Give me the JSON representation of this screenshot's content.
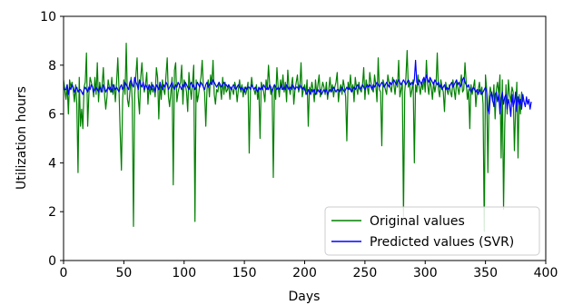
{
  "chart_data": {
    "type": "line",
    "title": "",
    "xlabel": "Days",
    "ylabel": "Utilization hours",
    "xlim": [
      0,
      400
    ],
    "ylim": [
      0,
      10
    ],
    "xticks": [
      "0",
      "50",
      "100",
      "150",
      "200",
      "250",
      "300",
      "350",
      "400"
    ],
    "yticks": [
      "0",
      "2",
      "4",
      "6",
      "8",
      "10"
    ],
    "grid": false,
    "legend_position": "lower-right",
    "series": [
      {
        "name": "Original values",
        "color": "#008000",
        "x_start": 0,
        "x_step": 1,
        "values": [
          7.4,
          7.0,
          6.6,
          7.2,
          6.0,
          7.4,
          7.1,
          7.3,
          7.0,
          6.5,
          7.2,
          6.4,
          3.6,
          7.5,
          5.5,
          6.2,
          5.4,
          7.1,
          7.3,
          8.5,
          5.5,
          6.8,
          7.5,
          7.3,
          7.1,
          6.7,
          7.5,
          6.8,
          8.1,
          6.5,
          7.3,
          6.9,
          7.2,
          7.9,
          6.8,
          6.2,
          6.7,
          7.4,
          7.1,
          6.9,
          7.5,
          6.8,
          7.2,
          6.5,
          7.3,
          8.3,
          7.0,
          5.2,
          3.7,
          6.6,
          7.4,
          6.8,
          8.9,
          6.6,
          6.3,
          6.9,
          7.5,
          6.5,
          1.4,
          6.8,
          7.6,
          8.3,
          6.7,
          6.0,
          7.5,
          8.1,
          7.3,
          6.9,
          7.2,
          7.7,
          6.4,
          7.2,
          6.8,
          7.3,
          6.9,
          7.1,
          6.7,
          7.9,
          7.5,
          5.8,
          7.3,
          6.6,
          7.4,
          7.0,
          6.8,
          7.6,
          8.3,
          6.7,
          6.3,
          6.9,
          7.5,
          3.1,
          7.8,
          8.1,
          6.5,
          6.9,
          7.1,
          7.3,
          8.0,
          6.4,
          7.4,
          7.2,
          6.9,
          6.1,
          7.7,
          7.1,
          6.6,
          7.3,
          8.0,
          1.6,
          7.4,
          6.5,
          6.8,
          7.2,
          7.5,
          8.2,
          7.1,
          6.9,
          5.5,
          7.0,
          7.4,
          6.7,
          7.6,
          7.2,
          8.2,
          6.8,
          6.4,
          7.0,
          6.9,
          7.3,
          7.1,
          6.6,
          7.5,
          6.8,
          7.3,
          6.9,
          7.0,
          7.2,
          6.6,
          7.1,
          7.0,
          6.8,
          7.3,
          7.1,
          6.5,
          7.0,
          7.4,
          6.9,
          7.2,
          6.7,
          7.1,
          6.8,
          7.0,
          7.3,
          4.4,
          6.9,
          7.5,
          7.1,
          7.0,
          6.8,
          7.2,
          6.6,
          7.0,
          5.0,
          7.3,
          7.1,
          6.9,
          6.5,
          7.4,
          7.0,
          8.0,
          7.2,
          6.8,
          7.0,
          3.4,
          7.2,
          6.6,
          7.9,
          7.1,
          6.7,
          7.4,
          7.0,
          7.6,
          6.9,
          7.3,
          6.5,
          7.8,
          7.1,
          6.8,
          7.2,
          7.5,
          6.4,
          7.0,
          7.3,
          7.6,
          6.9,
          7.1,
          8.1,
          6.7,
          7.0,
          7.2,
          6.8,
          7.4,
          5.5,
          7.1,
          6.9,
          7.3,
          7.0,
          6.5,
          7.4,
          6.8,
          7.2,
          7.6,
          6.7,
          7.0,
          7.3,
          7.1,
          6.8,
          7.3,
          6.6,
          7.0,
          7.5,
          6.9,
          7.2,
          6.7,
          7.1,
          7.3,
          7.7,
          6.5,
          7.0,
          7.2,
          6.8,
          7.4,
          7.1,
          6.7,
          4.9,
          7.3,
          7.0,
          7.6,
          6.9,
          7.2,
          6.5,
          7.5,
          7.1,
          6.8,
          7.3,
          7.0,
          6.9,
          7.2,
          7.9,
          6.6,
          7.4,
          7.1,
          6.8,
          7.7,
          7.3,
          7.0,
          6.9,
          7.6,
          7.2,
          6.5,
          8.3,
          7.0,
          6.9,
          4.7,
          7.4,
          7.2,
          7.0,
          6.8,
          7.6,
          7.3,
          7.1,
          6.9,
          7.5,
          7.2,
          6.8,
          7.4,
          7.1,
          8.2,
          6.7,
          7.0,
          7.3,
          1.8,
          6.9,
          7.5,
          8.6,
          7.1,
          7.3,
          6.7,
          7.0,
          7.4,
          4.0,
          7.2,
          6.9,
          7.6,
          7.1,
          6.8,
          7.3,
          7.0,
          7.5,
          6.9,
          8.2,
          7.2,
          6.8,
          7.4,
          7.1,
          6.6,
          7.3,
          6.9,
          7.2,
          8.5,
          7.0,
          6.7,
          7.4,
          7.1,
          6.9,
          6.1,
          7.3,
          7.0,
          6.8,
          7.2,
          6.9,
          6.7,
          7.4,
          7.0,
          6.6,
          7.3,
          7.1,
          6.8,
          7.2,
          7.6,
          6.9,
          7.0,
          8.1,
          7.3,
          6.6,
          7.0,
          5.4,
          7.2,
          6.8,
          7.1,
          7.4,
          6.3,
          6.9,
          7.0,
          7.3,
          6.8,
          7.1,
          6.4,
          1.2,
          7.6,
          7.0,
          3.6,
          6.7,
          7.1,
          6.8,
          6.5,
          7.2,
          5.8,
          7.0,
          7.3,
          6.8,
          7.6,
          4.2,
          7.4,
          2.1,
          5.6,
          7.2,
          6.0,
          7.4,
          6.8,
          6.5,
          7.1,
          6.9,
          4.5,
          6.2,
          7.3,
          4.2,
          6.8,
          6.0,
          6.9,
          6.5
        ]
      },
      {
        "name": "Predicted values (SVR)",
        "color": "#0000ff",
        "x_start": 0,
        "x_step": 1,
        "values": [
          7.1,
          7.0,
          7.0,
          7.2,
          6.8,
          7.1,
          7.0,
          7.2,
          7.1,
          6.9,
          7.0,
          7.1,
          6.9,
          7.0,
          7.0,
          6.9,
          6.8,
          7.0,
          7.1,
          7.0,
          6.9,
          7.1,
          7.0,
          7.2,
          7.1,
          6.9,
          7.0,
          7.1,
          7.0,
          6.9,
          7.1,
          7.0,
          6.9,
          7.2,
          7.1,
          6.9,
          7.0,
          7.1,
          7.0,
          7.1,
          6.9,
          7.2,
          7.1,
          7.0,
          7.1,
          7.0,
          6.9,
          7.1,
          7.2,
          7.0,
          7.1,
          7.3,
          7.2,
          7.1,
          7.0,
          7.3,
          7.4,
          7.2,
          7.1,
          7.5,
          7.3,
          7.2,
          7.0,
          7.4,
          7.2,
          7.1,
          7.3,
          7.0,
          7.2,
          7.1,
          7.0,
          7.2,
          7.1,
          7.0,
          7.2,
          7.1,
          6.9,
          7.2,
          7.1,
          7.0,
          7.3,
          7.1,
          7.0,
          7.2,
          7.1,
          7.3,
          7.2,
          7.0,
          7.1,
          7.2,
          7.3,
          7.1,
          7.0,
          7.2,
          7.1,
          7.3,
          7.2,
          7.1,
          7.0,
          7.2,
          7.1,
          7.3,
          7.2,
          7.1,
          7.0,
          7.2,
          7.3,
          7.1,
          7.2,
          7.0,
          7.1,
          7.3,
          7.2,
          7.1,
          7.3,
          7.2,
          7.1,
          7.0,
          7.2,
          7.3,
          7.1,
          7.2,
          7.3,
          7.2,
          7.4,
          7.3,
          7.2,
          7.1,
          7.2,
          7.3,
          7.2,
          7.1,
          7.2,
          7.3,
          7.2,
          7.2,
          7.1,
          7.2,
          7.1,
          7.0,
          7.1,
          7.2,
          7.1,
          7.0,
          7.1,
          7.2,
          7.1,
          7.0,
          7.1,
          7.0,
          6.9,
          7.1,
          7.0,
          7.1,
          7.1,
          7.0,
          7.2,
          7.1,
          7.0,
          7.1,
          7.0,
          6.9,
          7.1,
          7.0,
          7.1,
          7.0,
          7.2,
          7.1,
          7.0,
          7.1,
          7.0,
          7.2,
          7.1,
          6.9,
          7.1,
          7.2,
          7.1,
          7.0,
          7.1,
          7.0,
          7.1,
          7.2,
          7.0,
          7.1,
          7.0,
          7.2,
          7.1,
          7.0,
          7.1,
          7.0,
          7.2,
          7.1,
          7.0,
          7.1,
          7.1,
          7.0,
          7.2,
          7.1,
          7.0,
          7.1,
          7.0,
          6.9,
          6.8,
          7.0,
          6.9,
          6.8,
          7.0,
          6.9,
          7.0,
          6.8,
          6.9,
          7.0,
          6.9,
          7.0,
          6.8,
          6.9,
          7.0,
          6.9,
          7.0,
          6.8,
          6.9,
          7.0,
          6.9,
          7.0,
          7.1,
          7.0,
          6.9,
          7.0,
          7.0,
          6.9,
          7.0,
          7.1,
          7.0,
          6.9,
          7.0,
          7.1,
          7.0,
          7.1,
          7.0,
          6.9,
          7.0,
          7.1,
          7.0,
          7.1,
          7.2,
          7.1,
          7.0,
          7.1,
          7.2,
          7.1,
          7.0,
          7.1,
          7.2,
          7.1,
          7.2,
          7.1,
          7.0,
          7.2,
          7.1,
          7.2,
          7.3,
          7.2,
          7.1,
          7.2,
          7.3,
          7.2,
          7.1,
          7.2,
          7.3,
          7.2,
          7.1,
          7.3,
          7.2,
          7.3,
          7.4,
          7.3,
          7.2,
          7.3,
          7.4,
          7.3,
          7.2,
          7.3,
          7.4,
          7.3,
          7.2,
          7.3,
          7.4,
          7.3,
          7.2,
          7.3,
          7.2,
          7.4,
          8.2,
          7.3,
          7.2,
          7.4,
          7.3,
          7.2,
          7.4,
          7.5,
          7.3,
          7.6,
          7.4,
          7.3,
          7.5,
          7.4,
          7.3,
          7.2,
          7.4,
          7.3,
          7.2,
          7.3,
          7.1,
          7.2,
          7.0,
          7.1,
          7.2,
          7.0,
          7.1,
          7.0,
          7.1,
          7.2,
          7.3,
          7.1,
          7.2,
          7.3,
          7.4,
          7.2,
          7.3,
          7.1,
          7.2,
          7.4,
          7.5,
          7.3,
          7.2,
          7.1,
          7.2,
          7.0,
          6.9,
          7.0,
          7.1,
          7.0,
          6.9,
          7.0,
          6.8,
          7.0,
          6.9,
          6.8,
          6.9,
          7.0,
          7.1,
          6.9,
          6.2,
          6.0,
          6.7,
          6.9,
          6.6,
          6.3,
          6.8,
          6.9,
          6.5,
          6.8,
          6.0,
          6.6,
          6.9,
          6.4,
          6.7,
          6.8,
          6.2,
          6.6,
          6.4,
          5.9,
          6.8,
          6.3,
          6.5,
          6.9,
          6.1,
          6.7,
          6.4,
          6.6,
          6.2,
          6.8,
          6.5,
          6.3,
          6.7,
          6.4,
          6.6,
          6.2,
          6.5
        ]
      }
    ]
  }
}
